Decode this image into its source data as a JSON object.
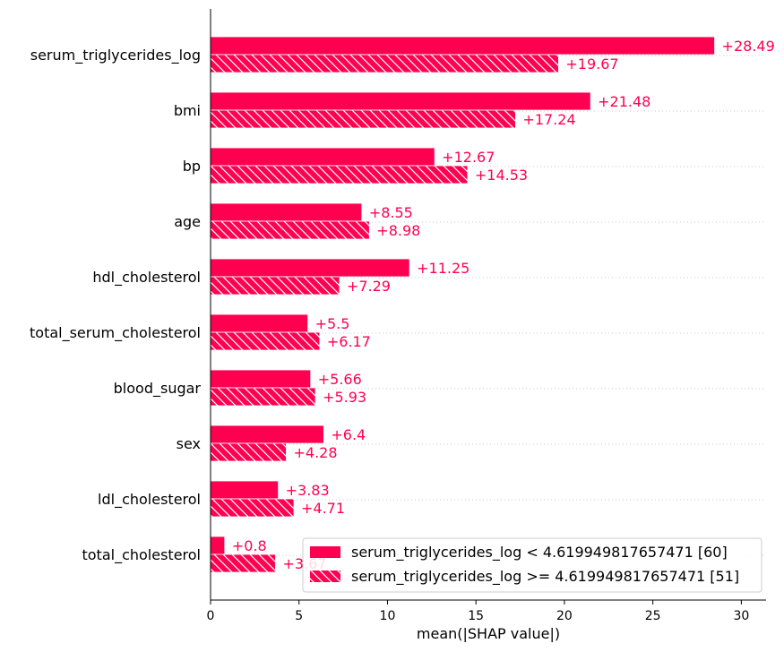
{
  "chart_data": {
    "type": "bar",
    "orientation": "horizontal",
    "title": "",
    "xlabel": "mean(|SHAP value|)",
    "ylabel": "",
    "xlim": [
      0,
      31.4
    ],
    "xticks": [
      0,
      5,
      10,
      15,
      20,
      25,
      30
    ],
    "grid": "dotted horizontal lines per category",
    "legend_position": "bottom-right",
    "bar_color": "#ff0051",
    "categories": [
      "serum_triglycerides_log",
      "bmi",
      "bp",
      "age",
      "hdl_cholesterol",
      "total_serum_cholesterol",
      "blood_sugar",
      "sex",
      "ldl_cholesterol",
      "total_cholesterol"
    ],
    "series": [
      {
        "name": "serum_triglycerides_log < 4.619949817657471 [60]",
        "pattern": "solid",
        "values": [
          28.49,
          21.48,
          12.67,
          8.55,
          11.25,
          5.5,
          5.66,
          6.4,
          3.83,
          0.8
        ],
        "value_labels": [
          "+28.49",
          "+21.48",
          "+12.67",
          "+8.55",
          "+11.25",
          "+5.5",
          "+5.66",
          "+6.4",
          "+3.83",
          "+0.8"
        ]
      },
      {
        "name": "serum_triglycerides_log >= 4.619949817657471 [51]",
        "pattern": "hatched",
        "values": [
          19.67,
          17.24,
          14.53,
          8.98,
          7.29,
          6.17,
          5.93,
          4.28,
          4.71,
          3.67
        ],
        "value_labels": [
          "+19.67",
          "+17.24",
          "+14.53",
          "+8.98",
          "+7.29",
          "+6.17",
          "+5.93",
          "+4.28",
          "+4.71",
          "+3.67"
        ]
      }
    ]
  }
}
